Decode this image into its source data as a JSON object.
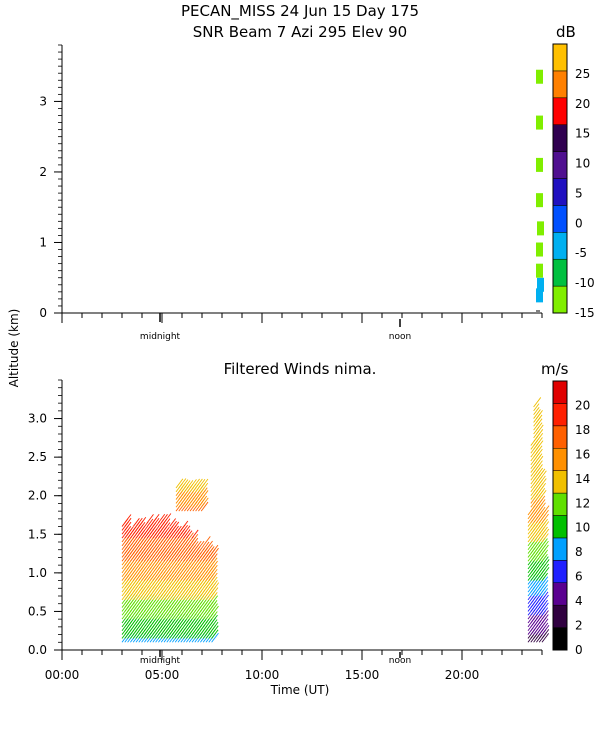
{
  "title_line1": "PECAN_MISS  24 Jun 15 Day 175",
  "title_line2": "SNR Beam 7 Azi 295 Elev 90",
  "shared_ylabel": "Altitude (km)",
  "xlabel": "Time (UT)",
  "marker_midnight": "midnight",
  "marker_noon": "noon",
  "chart_data": [
    {
      "type": "heatmap",
      "title": "SNR Beam 7 Azi 295 Elev 90",
      "ylim": [
        0,
        3.8
      ],
      "yticks": [
        "0",
        "1",
        "2",
        "3"
      ],
      "ytick_values": [
        0,
        1,
        2,
        3
      ],
      "colorbar": {
        "unit": "dB",
        "range": [
          -15,
          30
        ],
        "labels": [
          "-15",
          "-10",
          "-5",
          "0",
          "5",
          "10",
          "15",
          "20",
          "25"
        ],
        "label_values": [
          -15,
          -10,
          -5,
          0,
          5,
          10,
          15,
          20,
          25
        ],
        "colors": [
          "#80ee00",
          "#00c040",
          "#00b0f0",
          "#0050ff",
          "#2010c0",
          "#501090",
          "#300050",
          "#ff0000",
          "#ff8000",
          "#ffc000"
        ]
      },
      "cells": [
        {
          "t": 23.85,
          "z": 0.25,
          "dB": -2
        },
        {
          "t": 23.9,
          "z": 0.4,
          "dB": -3
        },
        {
          "t": 23.85,
          "z": 0.6,
          "dB": -13
        },
        {
          "t": 23.85,
          "z": 0.9,
          "dB": -13
        },
        {
          "t": 23.9,
          "z": 1.2,
          "dB": -14
        },
        {
          "t": 23.85,
          "z": 1.6,
          "dB": -13
        },
        {
          "t": 23.85,
          "z": 2.1,
          "dB": -14
        },
        {
          "t": 23.85,
          "z": 2.7,
          "dB": -14
        },
        {
          "t": 23.85,
          "z": 3.35,
          "dB": -14
        }
      ]
    },
    {
      "type": "scatter",
      "title": "Filtered Winds nima.",
      "xlabel": "Time (UT)",
      "xlim": [
        0,
        24
      ],
      "xticks": [
        "00:00",
        "05:00",
        "10:00",
        "15:00",
        "20:00"
      ],
      "xtick_values": [
        0,
        5,
        10,
        15,
        20
      ],
      "ylim": [
        0,
        3.5
      ],
      "yticks": [
        "0.0",
        "0.5",
        "1.0",
        "1.5",
        "2.0",
        "2.5",
        "3.0"
      ],
      "ytick_values": [
        0,
        0.5,
        1,
        1.5,
        2,
        2.5,
        3
      ],
      "colorbar": {
        "unit": "m/s",
        "range": [
          0,
          22
        ],
        "labels": [
          "0",
          "2",
          "4",
          "6",
          "8",
          "10",
          "12",
          "14",
          "16",
          "18",
          "20"
        ],
        "label_values": [
          0,
          2,
          4,
          6,
          8,
          10,
          12,
          14,
          16,
          18,
          20
        ],
        "colors": [
          "#000000",
          "#300040",
          "#5a0090",
          "#2020ff",
          "#00a0ff",
          "#00c000",
          "#60e000",
          "#f0c000",
          "#ff9000",
          "#ff6000",
          "#ff2000",
          "#e00000"
        ]
      },
      "wind_groups": [
        {
          "t_start": 3.0,
          "t_end": 7.6,
          "z_bottom": 0.1,
          "z_top": 1.7,
          "speed_bottom": 9,
          "speed_mid": 15,
          "speed_top": 20
        },
        {
          "t_start": 5.7,
          "t_end": 7.0,
          "z_bottom": 1.8,
          "z_top": 2.1,
          "speed_bottom": 17,
          "speed_mid": 15,
          "speed_top": 14
        },
        {
          "t_start": 23.3,
          "t_end": 24.0,
          "z_bottom": 0.1,
          "z_top": 3.2,
          "speed_bottom": 3,
          "speed_mid": 15,
          "speed_top": 13
        }
      ]
    }
  ]
}
